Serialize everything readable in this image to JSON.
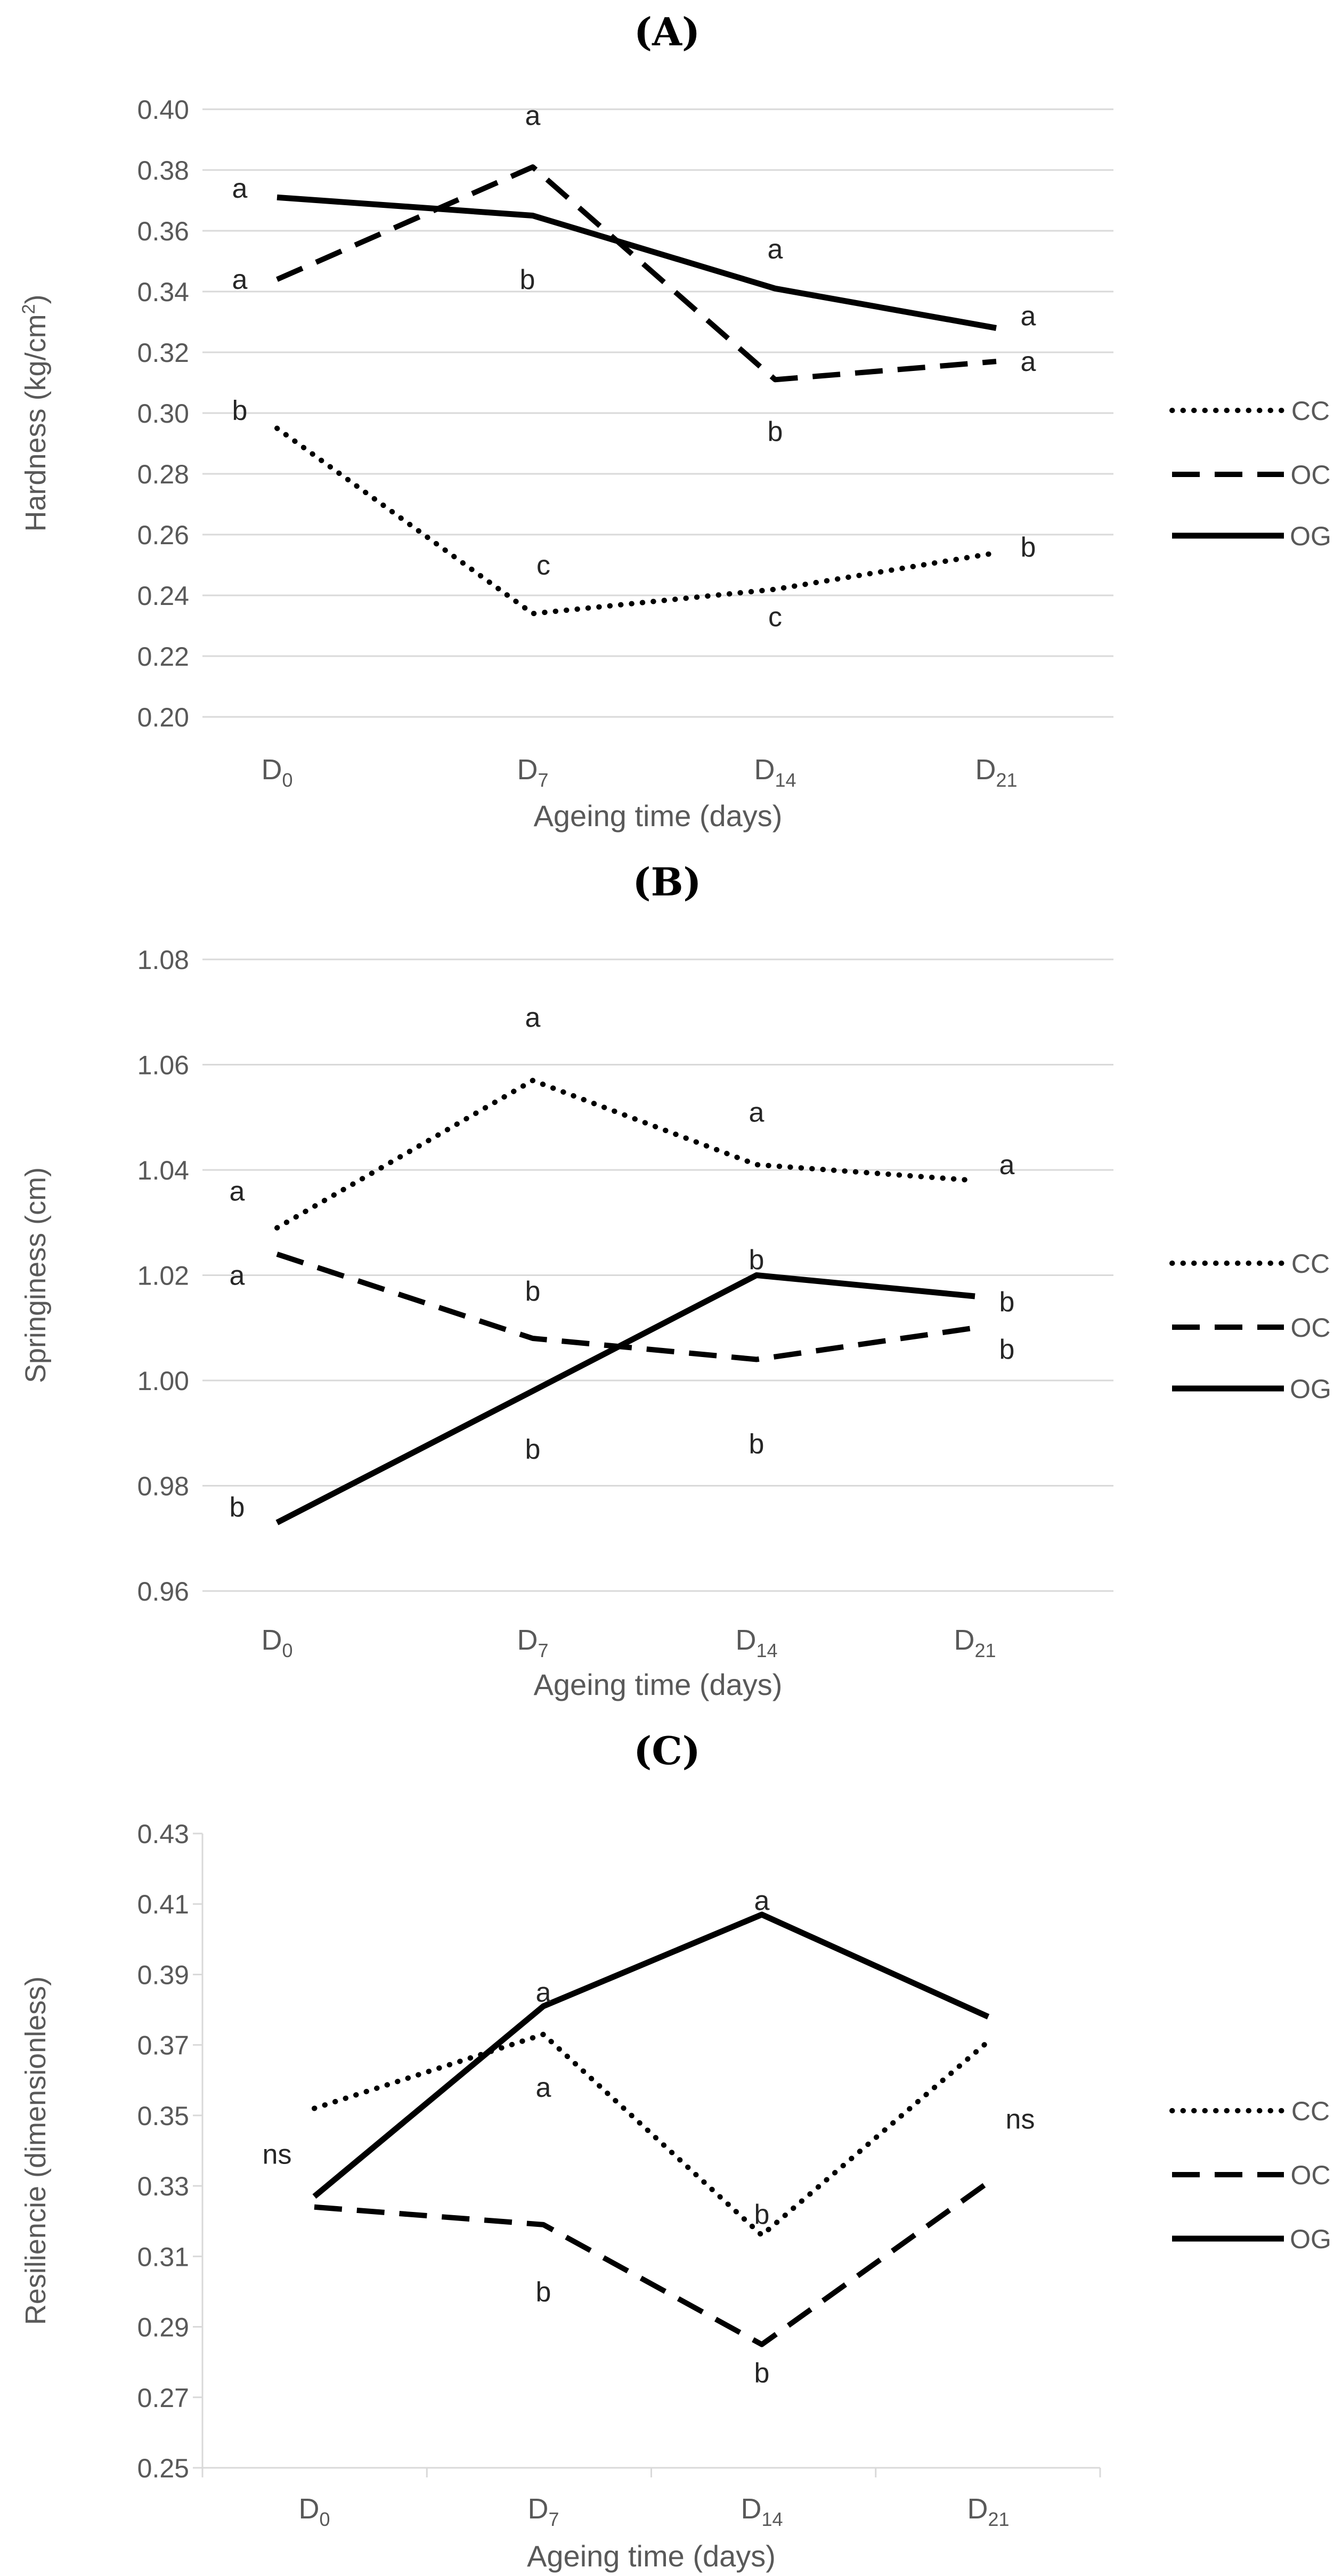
{
  "colors": {
    "grid": "#d9d9d9",
    "text": "#595959",
    "series": "#000000",
    "annotation": "#262626"
  },
  "chart_data": [
    {
      "panel": "A",
      "title_prefix": "(",
      "title_letter": "A",
      "title_suffix": ")",
      "type": "line",
      "categories": [
        {
          "base": "D",
          "sub": "0"
        },
        {
          "base": "D",
          "sub": "7"
        },
        {
          "base": "D",
          "sub": "14"
        },
        {
          "base": "D",
          "sub": "21"
        }
      ],
      "ylabel_main": "Hardness (kg/cm",
      "ylabel_sup": "2",
      "ylabel_end": ")",
      "xlabel": "Ageing time (days)",
      "ylim": [
        0.2,
        0.4
      ],
      "ystep": 0.02,
      "ydecimals": 2,
      "yticks": [
        "0.20",
        "0.22",
        "0.24",
        "0.26",
        "0.28",
        "0.30",
        "0.32",
        "0.34",
        "0.36",
        "0.38",
        "0.40"
      ],
      "grid": true,
      "legend_position": "right",
      "series": [
        {
          "name": "CC",
          "style": "dotted",
          "values": [
            0.295,
            0.234,
            0.242,
            0.254
          ]
        },
        {
          "name": "OC",
          "style": "dashed",
          "values": [
            0.344,
            0.381,
            0.311,
            0.317
          ]
        },
        {
          "name": "OG",
          "style": "solid",
          "values": [
            0.371,
            0.365,
            0.341,
            0.328
          ]
        }
      ],
      "annotations": [
        {
          "category": 0,
          "y": 0.301,
          "dx": -70,
          "text": "b"
        },
        {
          "category": 0,
          "y": 0.344,
          "dx": -70,
          "text": "a"
        },
        {
          "category": 0,
          "y": 0.374,
          "dx": -70,
          "text": "a"
        },
        {
          "category": 1,
          "y": 0.25,
          "dx": 20,
          "text": "c"
        },
        {
          "category": 1,
          "y": 0.344,
          "dx": -10,
          "text": "b"
        },
        {
          "category": 1,
          "y": 0.398,
          "dx": 0,
          "text": "a"
        },
        {
          "category": 2,
          "y": 0.233,
          "dx": 0,
          "text": "c"
        },
        {
          "category": 2,
          "y": 0.294,
          "dx": 0,
          "text": "b"
        },
        {
          "category": 2,
          "y": 0.354,
          "dx": 0,
          "text": "a"
        },
        {
          "category": 3,
          "y": 0.256,
          "dx": 60,
          "text": "b"
        },
        {
          "category": 3,
          "y": 0.317,
          "dx": 60,
          "text": "a"
        },
        {
          "category": 3,
          "y": 0.332,
          "dx": 60,
          "text": "a"
        }
      ]
    },
    {
      "panel": "B",
      "title_prefix": "(",
      "title_letter": "B",
      "title_suffix": ")",
      "type": "line",
      "categories": [
        {
          "base": "D",
          "sub": "0"
        },
        {
          "base": "D",
          "sub": "7"
        },
        {
          "base": "D",
          "sub": "14"
        },
        {
          "base": "D",
          "sub": "21"
        }
      ],
      "ylabel_main": "Springiness (cm)",
      "ylabel_sup": "",
      "ylabel_end": "",
      "xlabel": "Ageing time (days)",
      "ylim": [
        0.96,
        1.08
      ],
      "ystep": 0.02,
      "ydecimals": 2,
      "yticks": [
        "0.96",
        "0.98",
        "1.00",
        "1.02",
        "1.04",
        "1.06",
        "1.08"
      ],
      "grid": true,
      "legend_position": "right",
      "series": [
        {
          "name": "CC",
          "style": "dotted",
          "values": [
            1.029,
            1.057,
            1.041,
            1.038
          ]
        },
        {
          "name": "OC",
          "style": "dashed",
          "values": [
            1.024,
            1.008,
            1.004,
            1.01
          ]
        },
        {
          "name": "OG",
          "style": "solid",
          "values": [
            0.973,
            0.998,
            1.02,
            1.016
          ]
        }
      ],
      "annotations": [
        {
          "category": 0,
          "y": 0.976,
          "dx": -75,
          "text": "b"
        },
        {
          "category": 0,
          "y": 1.02,
          "dx": -75,
          "text": "a"
        },
        {
          "category": 0,
          "y": 1.036,
          "dx": -75,
          "text": "a"
        },
        {
          "category": 1,
          "y": 0.987,
          "dx": 0,
          "text": "b"
        },
        {
          "category": 1,
          "y": 1.017,
          "dx": 0,
          "text": "b"
        },
        {
          "category": 1,
          "y": 1.069,
          "dx": 0,
          "text": "a"
        },
        {
          "category": 2,
          "y": 0.988,
          "dx": 0,
          "text": "b"
        },
        {
          "category": 2,
          "y": 1.023,
          "dx": 0,
          "text": "b"
        },
        {
          "category": 2,
          "y": 1.051,
          "dx": 0,
          "text": "a"
        },
        {
          "category": 3,
          "y": 1.006,
          "dx": 60,
          "text": "b"
        },
        {
          "category": 3,
          "y": 1.015,
          "dx": 60,
          "text": "b"
        },
        {
          "category": 3,
          "y": 1.041,
          "dx": 60,
          "text": "a"
        }
      ]
    },
    {
      "panel": "C",
      "title_prefix": "(",
      "title_letter": "C",
      "title_suffix": ")",
      "type": "line",
      "categories": [
        {
          "base": "D",
          "sub": "0"
        },
        {
          "base": "D",
          "sub": "7"
        },
        {
          "base": "D",
          "sub": "14"
        },
        {
          "base": "D",
          "sub": "21"
        }
      ],
      "ylabel_main": "Resiliencie (dimensionless)",
      "ylabel_sup": "",
      "ylabel_end": "",
      "xlabel": "Ageing time (days)",
      "ylim": [
        0.25,
        0.43
      ],
      "ystep": 0.02,
      "ydecimals": 2,
      "yticks": [
        "0.25",
        "0.27",
        "0.29",
        "0.31",
        "0.33",
        "0.35",
        "0.37",
        "0.39",
        "0.41",
        "0.43"
      ],
      "grid": false,
      "legend_position": "right",
      "series": [
        {
          "name": "CC",
          "style": "dotted",
          "values": [
            0.352,
            0.373,
            0.316,
            0.371
          ]
        },
        {
          "name": "OC",
          "style": "dashed",
          "values": [
            0.324,
            0.319,
            0.285,
            0.331
          ]
        },
        {
          "name": "OG",
          "style": "solid",
          "values": [
            0.327,
            0.381,
            0.407,
            0.378
          ]
        }
      ],
      "annotations": [
        {
          "category": 0,
          "y": 0.339,
          "dx": -70,
          "text": "ns"
        },
        {
          "category": 1,
          "y": 0.3,
          "dx": 0,
          "text": "b"
        },
        {
          "category": 1,
          "y": 0.358,
          "dx": 0,
          "text": "a"
        },
        {
          "category": 1,
          "y": 0.385,
          "dx": 0,
          "text": "a"
        },
        {
          "category": 2,
          "y": 0.277,
          "dx": 0,
          "text": "b"
        },
        {
          "category": 2,
          "y": 0.322,
          "dx": 0,
          "text": "b"
        },
        {
          "category": 2,
          "y": 0.411,
          "dx": 0,
          "text": "a"
        },
        {
          "category": 3,
          "y": 0.349,
          "dx": 60,
          "text": "ns"
        }
      ]
    }
  ]
}
